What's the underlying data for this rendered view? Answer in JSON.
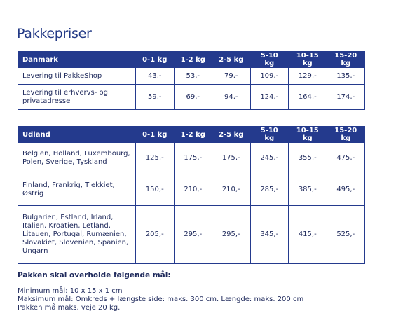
{
  "title": "Pakkepriser",
  "danmark": {
    "headers": [
      "Danmark",
      "0-1 kg",
      "1-2 kg",
      "2-5 kg",
      "5-10 kg",
      "10-15 kg",
      "15-20 kg"
    ],
    "rows": [
      {
        "label": "Levering til PakkeShop",
        "values": [
          "43,-",
          "53,-",
          "79,-",
          "109,-",
          "129,-",
          "135,-"
        ]
      },
      {
        "label": "Levering til erhvervs- og privatadresse",
        "values": [
          "59,-",
          "69,-",
          "94,-",
          "124,-",
          "164,-",
          "174,-"
        ]
      }
    ]
  },
  "udland": {
    "headers": [
      "Udland",
      "0-1 kg",
      "1-2 kg",
      "2-5 kg",
      "5-10 kg",
      "10-15 kg",
      "15-20 kg"
    ],
    "rows": [
      {
        "label": "Belgien, Holland, Luxembourg, Polen, Sverige, Tyskland",
        "values": [
          "125,-",
          "175,-",
          "175,-",
          "245,-",
          "355,-",
          "475,-"
        ]
      },
      {
        "label": "Finland, Frankrig, Tjekkiet, Østrig",
        "values": [
          "150,-",
          "210,-",
          "210,-",
          "285,-",
          "385,-",
          "495,-"
        ]
      },
      {
        "label": "Bulgarien, Estland, Irland, Italien, Kroatien, Letland, Litauen, Portugal, Rumænien, Slovakiet, Slovenien, Spanien, Ungarn",
        "values": [
          "205,-",
          "295,-",
          "295,-",
          "345,-",
          "415,-",
          "525,-"
        ]
      }
    ]
  },
  "dimensions": {
    "heading": "Pakken skal overholde følgende mål:",
    "lines": [
      "Minimum mål: 10 x 15 x 1 cm",
      "Maksimum mål: Omkreds + længste side: maks. 300 cm. Længde: maks. 200 cm",
      "Pakken må maks. veje 20 kg."
    ]
  }
}
